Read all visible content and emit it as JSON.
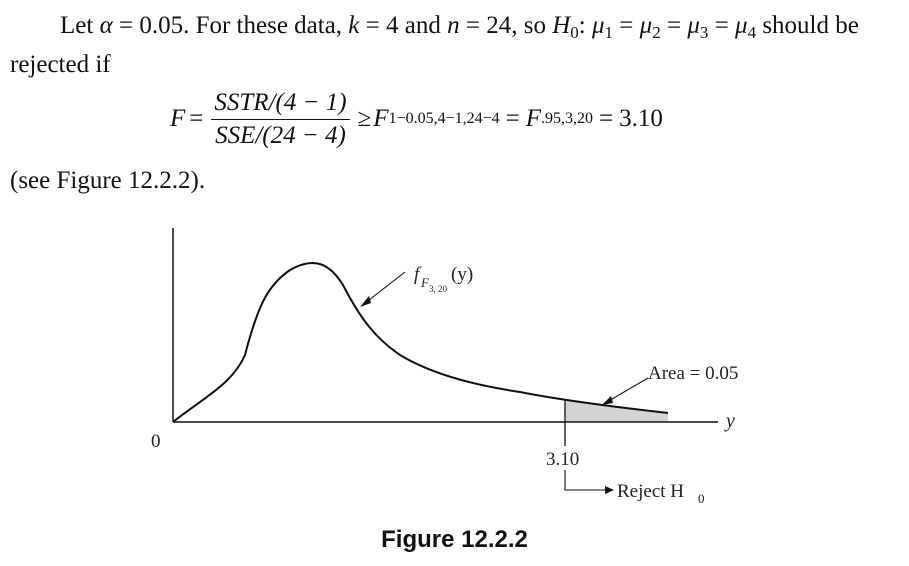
{
  "paragraph": {
    "let": "Let",
    "alpha": "α",
    "alpha_value": "0.05",
    "text_a": ". For these data,",
    "k_symbol": "k",
    "k_value": "4",
    "text_and": "and",
    "n_symbol": "n",
    "n_value": "24",
    "text_so": ", so",
    "h_symbol": "H",
    "h_sub": "0",
    "mu": "μ",
    "mu_subs": [
      "1",
      "2",
      "3",
      "4"
    ],
    "text_should": "should be rejected if"
  },
  "equation": {
    "lhs": "F",
    "numerator": "SSTR/(4 − 1)",
    "denominator": "SSE/(24 − 4)",
    "geq": "≥",
    "f_symbol": "F",
    "f_sub_1": "1−0.05,4−1,24−4",
    "f_sub_2": ".95,3,20",
    "result": "3.10"
  },
  "see_text": "(see Figure 12.2.2).",
  "figure": {
    "curve_label_f": "f",
    "curve_label_sub": "F",
    "curve_label_subsub": "3, 20",
    "curve_label_arg": "(y)",
    "area_label": "Area = 0.05",
    "x_axis_label": "y",
    "origin_label": "0",
    "critical_value": "3.10",
    "reject_label": "Reject H",
    "reject_sub": "0",
    "caption": "Figure 12.2.2"
  },
  "colors": {
    "shade": "#d4d4d4",
    "ink": "#111111"
  }
}
